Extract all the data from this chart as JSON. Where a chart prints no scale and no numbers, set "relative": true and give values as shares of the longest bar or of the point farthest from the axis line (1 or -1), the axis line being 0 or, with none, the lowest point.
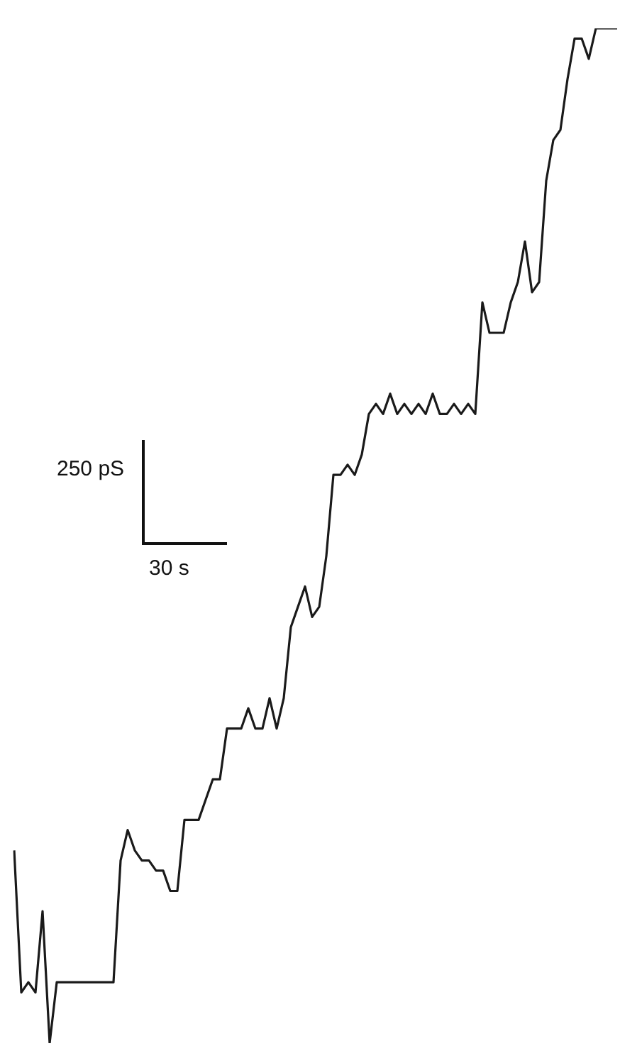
{
  "chart_data": {
    "type": "line",
    "relative": true,
    "marker": "none",
    "line_style": "solid",
    "legend": false,
    "grid": false,
    "tick_labels": false,
    "annotations": [
      "250 pS",
      "30 s"
    ],
    "categories": [
      null,
      null,
      null,
      null,
      null,
      null,
      null,
      null,
      null,
      null,
      null,
      null,
      null,
      null,
      null,
      null,
      null,
      null,
      null,
      null,
      null,
      null,
      null,
      null,
      null,
      null,
      null,
      null,
      null,
      null,
      null,
      null,
      null,
      null,
      null,
      null,
      null,
      null,
      null,
      null,
      null,
      null,
      null,
      null,
      null,
      null,
      null,
      null,
      null,
      null,
      null,
      null,
      null,
      null,
      null,
      null,
      null,
      null,
      null,
      null,
      null,
      null,
      null,
      null,
      null,
      null,
      null,
      null,
      null,
      null,
      null,
      null,
      null,
      null,
      null,
      null,
      null,
      null,
      null,
      null,
      null,
      null,
      null,
      null,
      null,
      null
    ],
    "series": [
      {
        "color": "#1a1a1a",
        "values": [
          0.19,
          0.05,
          0.06,
          0.05,
          0.13,
          0,
          0.06,
          0.06,
          0.06,
          0.06,
          0.06,
          0.06,
          0.06,
          0.06,
          0.06,
          0.18,
          0.21,
          0.19,
          0.18,
          0.18,
          0.17,
          0.17,
          0.15,
          0.15,
          0.22,
          0.22,
          0.22,
          0.24,
          0.26,
          0.26,
          0.31,
          0.31,
          0.31,
          0.33,
          0.31,
          0.31,
          0.34,
          0.31,
          0.34,
          0.41,
          0.43,
          0.45,
          0.42,
          0.43,
          0.48,
          0.56,
          0.56,
          0.57,
          0.56,
          0.58,
          0.62,
          0.63,
          0.62,
          0.64,
          0.62,
          0.63,
          0.62,
          0.63,
          0.62,
          0.64,
          0.62,
          0.62,
          0.63,
          0.62,
          0.63,
          0.62,
          0.73,
          0.7,
          0.7,
          0.7,
          0.73,
          0.75,
          0.79,
          0.74,
          0.75,
          0.85,
          0.89,
          0.9,
          0.95,
          0.99,
          0.99,
          0.97,
          1,
          1,
          1,
          1
        ]
      }
    ]
  }
}
